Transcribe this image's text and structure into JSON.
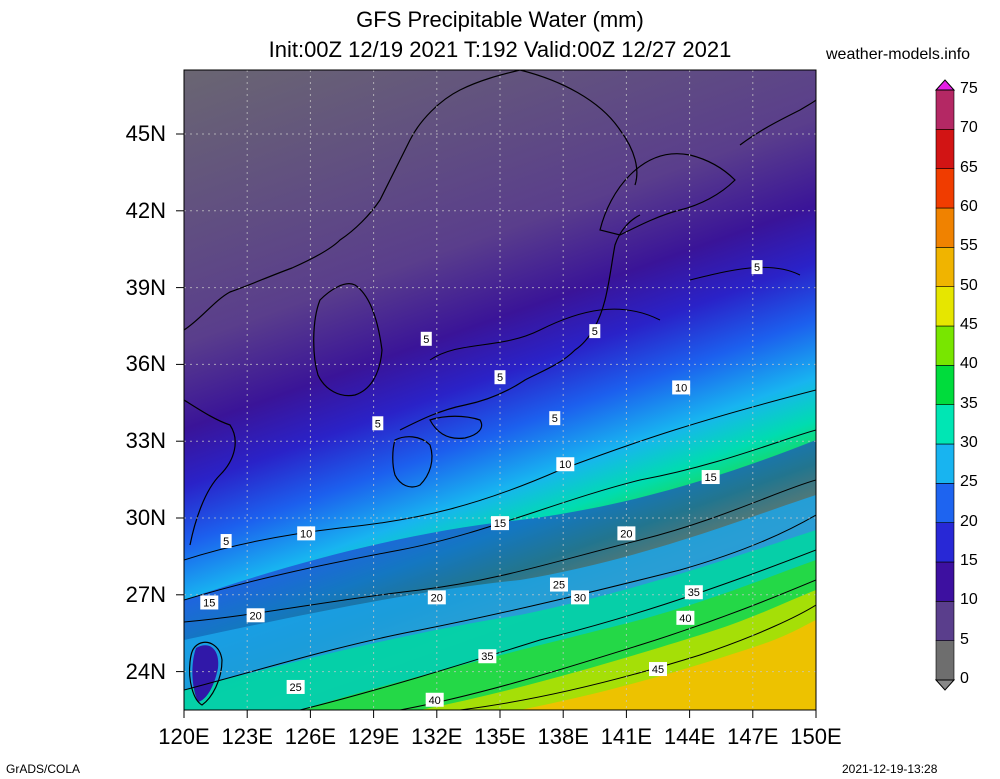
{
  "title": {
    "line1": "GFS Precipitable Water (mm)",
    "line2": "Init:00Z 12/19 2021 T:192 Valid:00Z 12/27 2021"
  },
  "site": "weather-models.info",
  "footer": {
    "left": "GrADS/COLA",
    "right": "2021-12-19-13:28"
  },
  "axes": {
    "lat_ticks": [
      "45N",
      "42N",
      "39N",
      "36N",
      "33N",
      "30N",
      "27N",
      "24N"
    ],
    "lon_ticks": [
      "120E",
      "123E",
      "126E",
      "129E",
      "132E",
      "135E",
      "138E",
      "141E",
      "144E",
      "147E",
      "150E"
    ],
    "lat_values": [
      45,
      42,
      39,
      36,
      33,
      30,
      27,
      24
    ],
    "lon_values": [
      120,
      123,
      126,
      129,
      132,
      135,
      138,
      141,
      144,
      147,
      150
    ],
    "lat_range": [
      22.5,
      47.5
    ],
    "lon_range": [
      120,
      150
    ]
  },
  "colorbar": {
    "levels": [
      "0",
      "5",
      "10",
      "15",
      "20",
      "25",
      "30",
      "35",
      "40",
      "45",
      "50",
      "55",
      "60",
      "65",
      "70",
      "75"
    ],
    "colors": [
      "#6e6e6e",
      "#5a3e8c",
      "#3d10a0",
      "#2828d6",
      "#1e64f0",
      "#18b4f0",
      "#00e6b4",
      "#00dc3c",
      "#78e600",
      "#e6e600",
      "#f0b400",
      "#f08200",
      "#f03c00",
      "#d21414",
      "#b42864",
      "#e61ee6"
    ]
  },
  "contour_labels": [
    {
      "text": "5",
      "lon": 135,
      "lat": 35.5
    },
    {
      "text": "5",
      "lon": 131.5,
      "lat": 37
    },
    {
      "text": "5",
      "lon": 139.5,
      "lat": 37.3
    },
    {
      "text": "5",
      "lon": 147.2,
      "lat": 39.8
    },
    {
      "text": "5",
      "lon": 129.2,
      "lat": 33.7
    },
    {
      "text": "5",
      "lon": 137.6,
      "lat": 33.9
    },
    {
      "text": "5",
      "lon": 122,
      "lat": 29.1
    },
    {
      "text": "10",
      "lon": 143.6,
      "lat": 35.1
    },
    {
      "text": "10",
      "lon": 138.1,
      "lat": 32.1
    },
    {
      "text": "10",
      "lon": 125.8,
      "lat": 29.4
    },
    {
      "text": "15",
      "lon": 145,
      "lat": 31.6
    },
    {
      "text": "15",
      "lon": 135,
      "lat": 29.8
    },
    {
      "text": "15",
      "lon": 121.2,
      "lat": 26.7
    },
    {
      "text": "20",
      "lon": 141,
      "lat": 29.4
    },
    {
      "text": "20",
      "lon": 132,
      "lat": 26.9
    },
    {
      "text": "20",
      "lon": 123.4,
      "lat": 26.2
    },
    {
      "text": "25",
      "lon": 137.8,
      "lat": 27.4
    },
    {
      "text": "25",
      "lon": 125.3,
      "lat": 23.4
    },
    {
      "text": "30",
      "lon": 138.8,
      "lat": 26.9
    },
    {
      "text": "35",
      "lon": 144.2,
      "lat": 27.1
    },
    {
      "text": "35",
      "lon": 134.4,
      "lat": 24.6
    },
    {
      "text": "40",
      "lon": 143.8,
      "lat": 26.1
    },
    {
      "text": "40",
      "lon": 131.9,
      "lat": 22.9
    },
    {
      "text": "45",
      "lon": 142.5,
      "lat": 24.1
    }
  ]
}
